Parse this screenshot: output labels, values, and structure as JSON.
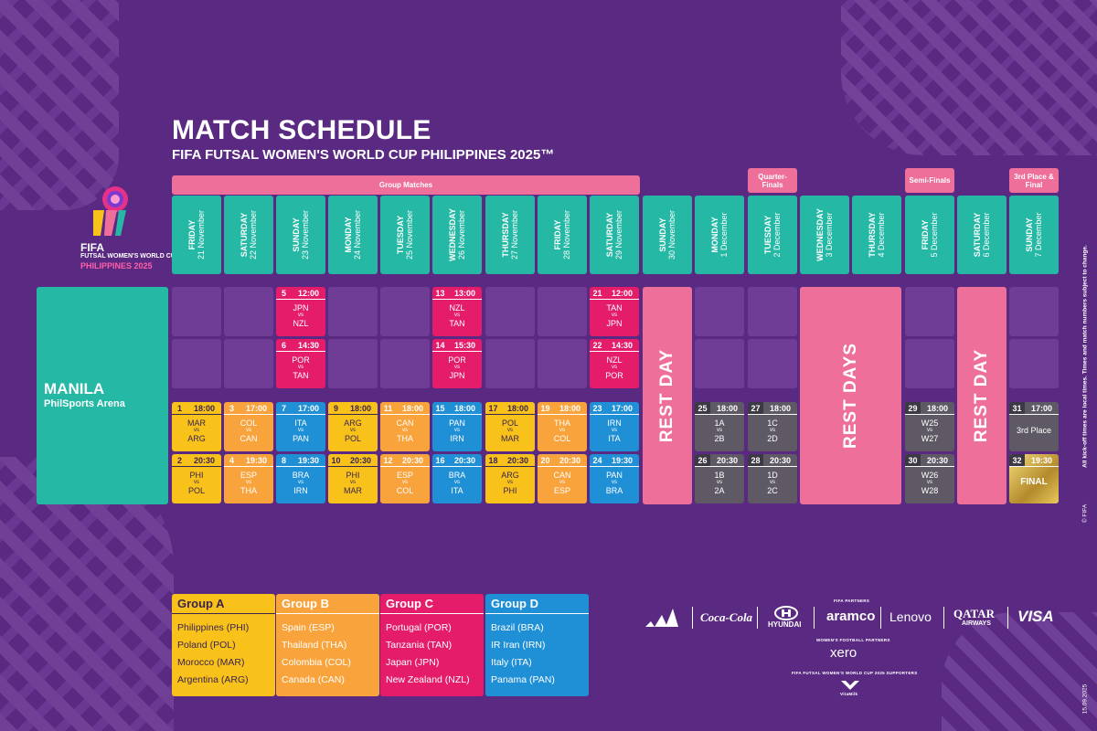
{
  "header": {
    "title": "MATCH SCHEDULE",
    "subtitle": "FIFA FUTSAL WOMEN'S WORLD CUP PHILIPPINES 2025™"
  },
  "logo": {
    "fifa": "FIFA",
    "line1": "FUTSAL WOMEN'S WORLD CUP",
    "line2": "PHILIPPINES 2025"
  },
  "stages": {
    "group_matches": "Group Matches",
    "quarter_finals": "Quarter-Finals",
    "semi_finals": "Semi-Finals",
    "third_place_final": "3rd Place & Final"
  },
  "days": [
    {
      "name": "FRIDAY",
      "date": "21 November"
    },
    {
      "name": "SATURDAY",
      "date": "22 November"
    },
    {
      "name": "SUNDAY",
      "date": "23 November"
    },
    {
      "name": "MONDAY",
      "date": "24 November"
    },
    {
      "name": "TUESDAY",
      "date": "25 November"
    },
    {
      "name": "WEDNESDAY",
      "date": "26 November"
    },
    {
      "name": "THURSDAY",
      "date": "27 November"
    },
    {
      "name": "FRIDAY",
      "date": "28 November"
    },
    {
      "name": "SATURDAY",
      "date": "29 November"
    },
    {
      "name": "SUNDAY",
      "date": "30 November"
    },
    {
      "name": "MONDAY",
      "date": "1 December"
    },
    {
      "name": "TUESDAY",
      "date": "2 December"
    },
    {
      "name": "WEDNESDAY",
      "date": "3 December"
    },
    {
      "name": "THURSDAY",
      "date": "4 December"
    },
    {
      "name": "FRIDAY",
      "date": "5 December"
    },
    {
      "name": "SATURDAY",
      "date": "6 December"
    },
    {
      "name": "SUNDAY",
      "date": "7 December"
    }
  ],
  "venue": {
    "city": "MANILA",
    "arena": "PhilSports Arena"
  },
  "rest": {
    "day_one": "REST DAY",
    "days_two": "REST DAYS",
    "day_three": "REST DAY"
  },
  "matches": [
    {
      "num": "5",
      "time": "12:00",
      "home": "JPN",
      "away": "NZL",
      "vs": "vs"
    },
    {
      "num": "13",
      "time": "13:00",
      "home": "NZL",
      "away": "TAN",
      "vs": "vs"
    },
    {
      "num": "21",
      "time": "12:00",
      "home": "TAN",
      "away": "JPN",
      "vs": "vs"
    },
    {
      "num": "6",
      "time": "14:30",
      "home": "POR",
      "away": "TAN",
      "vs": "vs"
    },
    {
      "num": "14",
      "time": "15:30",
      "home": "POR",
      "away": "JPN",
      "vs": "vs"
    },
    {
      "num": "22",
      "time": "14:30",
      "home": "NZL",
      "away": "POR",
      "vs": "vs"
    },
    {
      "num": "1",
      "time": "18:00",
      "home": "MAR",
      "away": "ARG",
      "vs": "vs"
    },
    {
      "num": "3",
      "time": "17:00",
      "home": "COL",
      "away": "CAN",
      "vs": "vs"
    },
    {
      "num": "7",
      "time": "17:00",
      "home": "ITA",
      "away": "PAN",
      "vs": "vs"
    },
    {
      "num": "9",
      "time": "18:00",
      "home": "ARG",
      "away": "POL",
      "vs": "vs"
    },
    {
      "num": "11",
      "time": "18:00",
      "home": "CAN",
      "away": "THA",
      "vs": "vs"
    },
    {
      "num": "15",
      "time": "18:00",
      "home": "PAN",
      "away": "IRN",
      "vs": "vs"
    },
    {
      "num": "17",
      "time": "18:00",
      "home": "POL",
      "away": "MAR",
      "vs": "vs"
    },
    {
      "num": "19",
      "time": "18:00",
      "home": "THA",
      "away": "COL",
      "vs": "vs"
    },
    {
      "num": "23",
      "time": "17:00",
      "home": "IRN",
      "away": "ITA",
      "vs": "vs"
    },
    {
      "num": "25",
      "time": "18:00",
      "home": "1A",
      "away": "2B",
      "vs": "vs"
    },
    {
      "num": "27",
      "time": "18:00",
      "home": "1C",
      "away": "2D",
      "vs": "vs"
    },
    {
      "num": "29",
      "time": "18:00",
      "home": "W25",
      "away": "W27",
      "vs": "vs"
    },
    {
      "num": "31",
      "time": "17:00",
      "label": "3rd Place"
    },
    {
      "num": "2",
      "time": "20:30",
      "home": "PHI",
      "away": "POL",
      "vs": "vs"
    },
    {
      "num": "4",
      "time": "19:30",
      "home": "ESP",
      "away": "THA",
      "vs": "vs"
    },
    {
      "num": "8",
      "time": "19:30",
      "home": "BRA",
      "away": "IRN",
      "vs": "vs"
    },
    {
      "num": "10",
      "time": "20:30",
      "home": "PHI",
      "away": "MAR",
      "vs": "vs"
    },
    {
      "num": "12",
      "time": "20:30",
      "home": "ESP",
      "away": "COL",
      "vs": "vs"
    },
    {
      "num": "16",
      "time": "20:30",
      "home": "BRA",
      "away": "ITA",
      "vs": "vs"
    },
    {
      "num": "18",
      "time": "20:30",
      "home": "ARG",
      "away": "PHI",
      "vs": "vs"
    },
    {
      "num": "20",
      "time": "20:30",
      "home": "CAN",
      "away": "ESP",
      "vs": "vs"
    },
    {
      "num": "24",
      "time": "19:30",
      "home": "PAN",
      "away": "BRA",
      "vs": "vs"
    },
    {
      "num": "26",
      "time": "20:30",
      "home": "1B",
      "away": "2A",
      "vs": "vs"
    },
    {
      "num": "28",
      "time": "20:30",
      "home": "1D",
      "away": "2C",
      "vs": "vs"
    },
    {
      "num": "30",
      "time": "20:30",
      "home": "W26",
      "away": "W28",
      "vs": "vs"
    },
    {
      "num": "32",
      "time": "19:30",
      "label": "FINAL"
    }
  ],
  "groups": [
    {
      "name": "Group A",
      "teams": [
        "Philippines (PHI)",
        "Poland (POL)",
        "Morocco (MAR)",
        "Argentina (ARG)"
      ]
    },
    {
      "name": "Group B",
      "teams": [
        "Spain (ESP)",
        "Thailand (THA)",
        "Colombia (COL)",
        "Canada (CAN)"
      ]
    },
    {
      "name": "Group C",
      "teams": [
        "Portugal (POR)",
        "Tanzania (TAN)",
        "Japan (JPN)",
        "New Zealand (NZL)"
      ]
    },
    {
      "name": "Group D",
      "teams": [
        "Brazil (BRA)",
        "IR Iran (IRN)",
        "Italy (ITA)",
        "Panama (PAN)"
      ]
    }
  ],
  "sponsors": {
    "partners_label": "FIFA PARTNERS",
    "coca_cola": "Coca-Cola",
    "hyundai": "HYUNDAI",
    "aramco": "aramco",
    "lenovo": "Lenovo",
    "qatar": "QATAR",
    "qatar_sub": "AIRWAYS",
    "visa": "VISA",
    "womens_label": "WOMEN'S FOOTBALL PARTNERS",
    "xero": "xero",
    "supporters_label": "FIFA FUTSAL WOMEN'S WORLD CUP 2025 SUPPORTERS",
    "vitamilk": "VitaMilk"
  },
  "notes": {
    "disclaimer": "All kick-off times are local times. Times and match numbers subject to change.",
    "copyright": "© FIFA",
    "date": "15.09.2025"
  },
  "colors": {
    "background": "#5a2a82",
    "teal": "#25b8a5",
    "pink_stage": "#ef6f9b",
    "group_a": "#f8c21a",
    "group_b": "#f9a33c",
    "group_c": "#e41c6a",
    "group_d": "#1f8fd6",
    "knockout": "#5e5964"
  }
}
